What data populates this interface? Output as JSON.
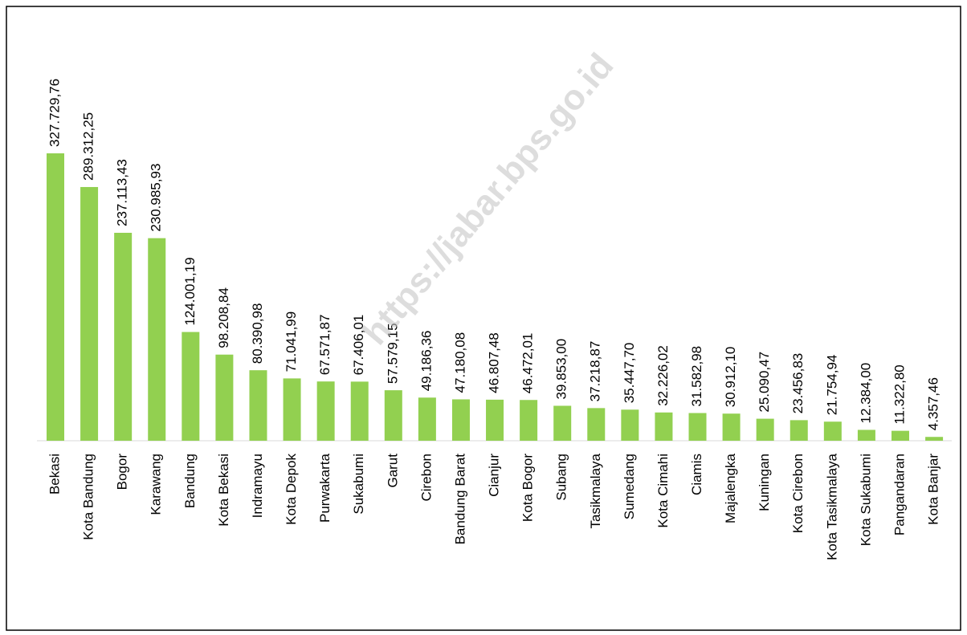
{
  "chart_data": {
    "type": "bar",
    "watermark": "https://jabar.bps.go.id",
    "categories": [
      "Bekasi",
      "Kota Bandung",
      "Bogor",
      "Karawang",
      "Bandung",
      "Kota Bekasi",
      "Indramayu",
      "Kota Depok",
      "Purwakarta",
      "Sukabumi",
      "Garut",
      "Cirebon",
      "Bandung Barat",
      "Cianjur",
      "Kota Bogor",
      "Subang",
      "Tasikmalaya",
      "Sumedang",
      "Kota Cimahi",
      "Ciamis",
      "Majalengka",
      "Kuningan",
      "Kota Cirebon",
      "Kota Tasikmalaya",
      "Kota Sukabumi",
      "Pangandaran",
      "Kota Banjar"
    ],
    "values": [
      327729.76,
      289312.25,
      237113.43,
      230985.93,
      124001.19,
      98208.84,
      80390.98,
      71041.99,
      67571.87,
      67406.01,
      57579.15,
      49186.36,
      47180.08,
      46807.48,
      46472.01,
      39853.0,
      37218.87,
      35447.7,
      32226.02,
      31582.98,
      30912.1,
      25090.47,
      23456.83,
      21754.94,
      12384.0,
      11322.8,
      4357.46
    ],
    "value_labels": [
      "327.729,76",
      "289.312,25",
      "237.113,43",
      "230.985,93",
      "124.001,19",
      "98.208,84",
      "80.390,98",
      "71.041,99",
      "67.571,87",
      "67.406,01",
      "57.579,15",
      "49.186,36",
      "47.180,08",
      "46.807,48",
      "46.472,01",
      "39.853,00",
      "37.218,87",
      "35.447,70",
      "32.226,02",
      "31.582,98",
      "30.912,10",
      "25.090,47",
      "23.456,83",
      "21.754,94",
      "12.384,00",
      "11.322,80",
      "4.357,46"
    ],
    "color": "#92d050"
  }
}
